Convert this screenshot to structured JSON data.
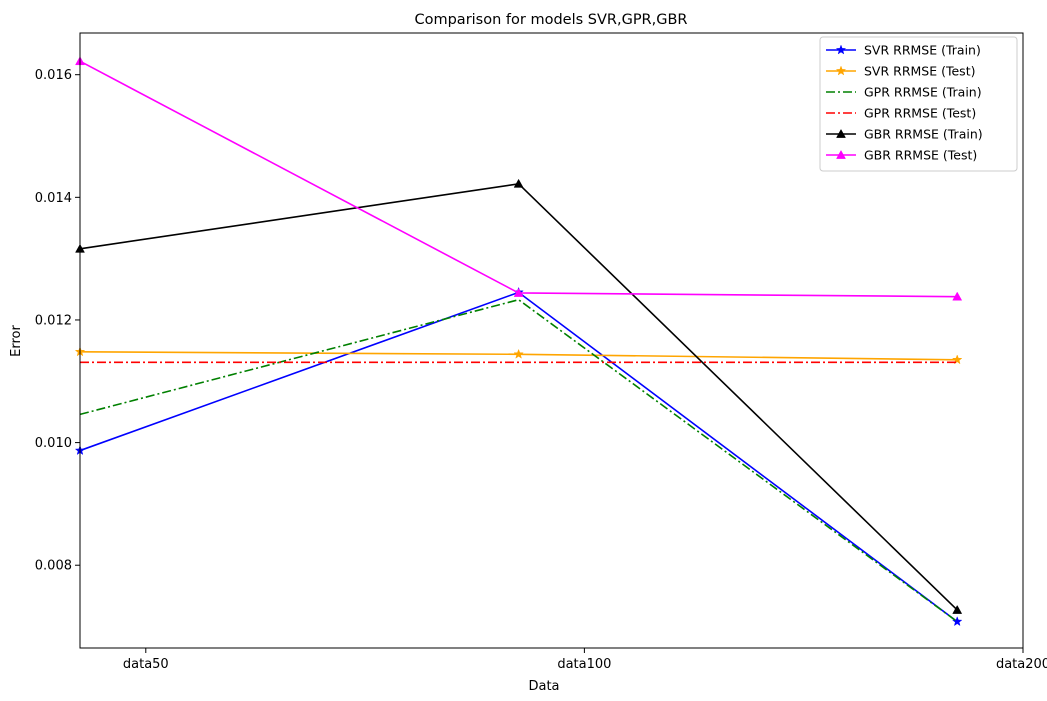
{
  "chart_data": {
    "type": "line",
    "title": "Comparison for models SVR,GPR,GBR",
    "xlabel": "Data",
    "ylabel": "Error",
    "categories": [
      "data50",
      "data100",
      "data200"
    ],
    "ylim": [
      0.00665,
      0.01668
    ],
    "yticks": [
      0.008,
      0.01,
      0.012,
      0.014,
      0.016
    ],
    "ytick_labels": [
      "0.008",
      "0.010",
      "0.012",
      "0.014",
      "0.016"
    ],
    "grid": false,
    "legend_position": "top-right",
    "series": [
      {
        "name": "SVR RRMSE (Train)",
        "color": "#0000ff",
        "dash": "solid",
        "marker": "star",
        "values": [
          0.00987,
          0.01245,
          0.00708
        ]
      },
      {
        "name": "SVR RRMSE (Test)",
        "color": "#ffa500",
        "dash": "solid",
        "marker": "star",
        "values": [
          0.01148,
          0.01144,
          0.01135
        ]
      },
      {
        "name": "GPR RRMSE (Train)",
        "color": "#008000",
        "dash": "dashdot",
        "marker": "none",
        "values": [
          0.01046,
          0.01233,
          0.00708
        ]
      },
      {
        "name": "GPR RRMSE (Test)",
        "color": "#ff0000",
        "dash": "dashdot",
        "marker": "none",
        "values": [
          0.01131,
          0.01131,
          0.01131
        ]
      },
      {
        "name": "GBR RRMSE (Train)",
        "color": "#000000",
        "dash": "solid",
        "marker": "triangle",
        "values": [
          0.01316,
          0.01422,
          0.00727
        ]
      },
      {
        "name": "GBR RRMSE (Test)",
        "color": "#ff00ff",
        "dash": "solid",
        "marker": "triangle",
        "values": [
          0.01622,
          0.01244,
          0.01238
        ]
      }
    ]
  }
}
